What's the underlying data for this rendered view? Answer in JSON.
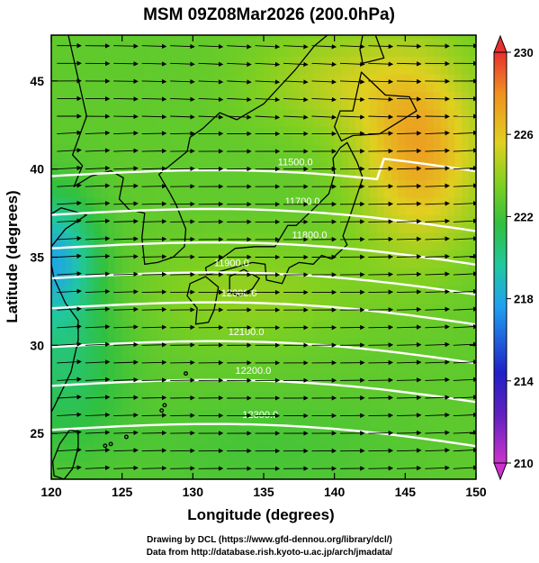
{
  "title": "MSM 09Z08Mar2026 (200.0hPa)",
  "axes": {
    "xlabel": "Longitude (degrees)",
    "ylabel": "Latitude  (degrees)",
    "xlim": [
      120,
      150
    ],
    "ylim": [
      22.4,
      47.6
    ],
    "xticks": [
      "120",
      "125",
      "130",
      "135",
      "140",
      "145",
      "150"
    ],
    "yticks": [
      "25",
      "30",
      "35",
      "40",
      "45"
    ]
  },
  "colorbar": {
    "min": 210,
    "max": 230,
    "ticks": [
      "210",
      "214",
      "218",
      "222",
      "226",
      "230"
    ],
    "colors": [
      "#cc33cc",
      "#2020c8",
      "#20a0f0",
      "#20c8a0",
      "#30c040",
      "#80d020",
      "#e0d020",
      "#f09020",
      "#e83030"
    ]
  },
  "map": {
    "field": "temperature",
    "contours": [
      {
        "label": "11500.0",
        "lat": 39.0
      },
      {
        "label": "11700.0",
        "lat": 36.8
      },
      {
        "label": "11800.0",
        "lat": 34.9
      },
      {
        "label": "11900.0",
        "lat": 33.2
      },
      {
        "label": "12000.0",
        "lat": 31.5
      },
      {
        "label": "12100.0",
        "lat": 29.3
      },
      {
        "label": "12200.0",
        "lat": 27.1
      },
      {
        "label": "12300.0",
        "lat": 24.6
      }
    ],
    "wind_direction": "westerly"
  },
  "credits": {
    "line1": "Drawing by DCL (https://www.gfd-dennou.org/library/dcl/)",
    "line2": "Data from http://database.rish.kyoto-u.ac.jp/arch/jmadata/"
  }
}
